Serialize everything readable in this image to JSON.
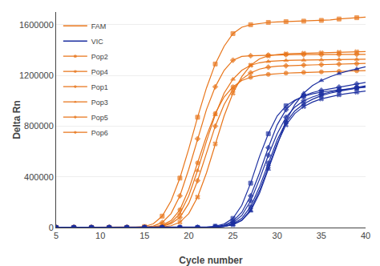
{
  "chart_data": {
    "type": "line",
    "xlabel": "Cycle number",
    "ylabel": "Delta Rn",
    "xlim": [
      5,
      40
    ],
    "ylim": [
      0,
      1700000
    ],
    "xticks": [
      5,
      10,
      15,
      20,
      25,
      30,
      35,
      40
    ],
    "yticks": [
      0,
      400000,
      800000,
      1200000,
      1600000
    ],
    "grid": "y",
    "legend": "upper left",
    "x": [
      5,
      6,
      7,
      8,
      9,
      10,
      11,
      12,
      13,
      14,
      15,
      16,
      17,
      18,
      19,
      20,
      21,
      22,
      23,
      24,
      25,
      26,
      27,
      28,
      29,
      30,
      31,
      32,
      33,
      34,
      35,
      36,
      37,
      38,
      39,
      40
    ],
    "series": [
      {
        "name": "FAM",
        "color": "#E8751A",
        "series": [
          {
            "name": "Pop2",
            "marker": "square",
            "values": [
              500,
              500,
              500,
              500,
              500,
              500,
              500,
              500,
              500,
              2000,
              8000,
              30000,
              90000,
              210000,
              390000,
              620000,
              870000,
              1100000,
              1290000,
              1430000,
              1530000,
              1580000,
              1600000,
              1610000,
              1618000,
              1622000,
              1624000,
              1626000,
              1628000,
              1630000,
              1634000,
              1638000,
              1645000,
              1650000,
              1655000,
              1660000
            ]
          },
          {
            "name": "Pop4",
            "marker": "x",
            "values": [
              500,
              500,
              500,
              500,
              500,
              500,
              500,
              500,
              500,
              500,
              500,
              1000,
              4000,
              14000,
              42000,
              110000,
              240000,
              430000,
              660000,
              880000,
              1060000,
              1190000,
              1280000,
              1330000,
              1355000,
              1365000,
              1370000,
              1372000,
              1374000,
              1376000,
              1378000,
              1380000,
              1382000,
              1384000,
              1386000,
              1388000
            ]
          },
          {
            "name": "Pop1",
            "marker": "diamond",
            "values": [
              500,
              500,
              500,
              500,
              500,
              500,
              500,
              500,
              500,
              1000,
              3000,
              12000,
              40000,
              110000,
              250000,
              460000,
              700000,
              930000,
              1110000,
              1240000,
              1320000,
              1350000,
              1355000,
              1358000,
              1360000,
              1362000,
              1363000,
              1364000,
              1364000,
              1364000,
              1364000,
              1365000,
              1365000,
              1366000,
              1366000,
              1366000
            ]
          },
          {
            "name": "Pop3",
            "marker": "triangle-up",
            "values": [
              500,
              500,
              500,
              500,
              500,
              500,
              500,
              500,
              500,
              500,
              1000,
              3000,
              12000,
              40000,
              110000,
              250000,
              450000,
              680000,
              890000,
              1060000,
              1170000,
              1240000,
              1280000,
              1300000,
              1310000,
              1315000,
              1318000,
              1320000,
              1321000,
              1322000,
              1323000,
              1324000,
              1325000,
              1326000,
              1327000,
              1328000
            ]
          },
          {
            "name": "Pop5",
            "marker": "diamond",
            "values": [
              500,
              500,
              500,
              500,
              500,
              500,
              500,
              500,
              500,
              500,
              1000,
              3000,
              10000,
              30000,
              80000,
              190000,
              370000,
              590000,
              800000,
              970000,
              1090000,
              1170000,
              1220000,
              1250000,
              1265000,
              1272000,
              1276000,
              1279000,
              1281000,
              1283000,
              1285000,
              1287000,
              1289000,
              1291000,
              1293000,
              1295000
            ]
          },
          {
            "name": "Pop6",
            "marker": "circle",
            "values": [
              500,
              500,
              500,
              500,
              500,
              500,
              500,
              500,
              500,
              500,
              1500,
              5000,
              18000,
              55000,
              140000,
              300000,
              510000,
              720000,
              900000,
              1030000,
              1110000,
              1160000,
              1185000,
              1200000,
              1208000,
              1214000,
              1218000,
              1221000,
              1224000,
              1226000,
              1228000,
              1230000,
              1232000,
              1234000,
              1236000,
              1238000
            ]
          }
        ]
      },
      {
        "name": "VIC",
        "color": "#1C2FA0",
        "series": [
          {
            "marker": "triangle-up",
            "values": [
              500,
              500,
              500,
              500,
              500,
              500,
              500,
              500,
              500,
              500,
              500,
              500,
              500,
              500,
              500,
              500,
              500,
              1000,
              3000,
              8000,
              22000,
              55000,
              130000,
              270000,
              460000,
              660000,
              840000,
              970000,
              1060000,
              1120000,
              1160000,
              1190000,
              1215000,
              1235000,
              1252000,
              1268000
            ]
          },
          {
            "marker": "diamond",
            "values": [
              500,
              500,
              500,
              500,
              500,
              500,
              500,
              500,
              500,
              500,
              500,
              500,
              500,
              500,
              500,
              500,
              500,
              2000,
              6000,
              18000,
              50000,
              120000,
              250000,
              430000,
              630000,
              810000,
              930000,
              1000000,
              1040000,
              1065000,
              1082000,
              1095000,
              1108000,
              1120000,
              1133000,
              1145000
            ]
          },
          {
            "marker": "diamond",
            "values": [
              500,
              500,
              500,
              500,
              500,
              500,
              500,
              500,
              500,
              500,
              500,
              500,
              500,
              500,
              500,
              500,
              500,
              1500,
              5000,
              14000,
              38000,
              95000,
              210000,
              380000,
              570000,
              740000,
              870000,
              950000,
              1000000,
              1030000,
              1052000,
              1068000,
              1082000,
              1094000,
              1106000,
              1118000
            ]
          },
          {
            "marker": "circle",
            "values": [
              500,
              500,
              500,
              500,
              500,
              500,
              500,
              500,
              500,
              500,
              500,
              500,
              500,
              500,
              500,
              500,
              500,
              1000,
              3500,
              10000,
              28000,
              72000,
              165000,
              320000,
              510000,
              690000,
              830000,
              920000,
              975000,
              1012000,
              1040000,
              1060000,
              1075000,
              1088000,
              1100000,
              1112000
            ]
          },
          {
            "marker": "x",
            "values": [
              500,
              500,
              500,
              500,
              500,
              500,
              500,
              500,
              500,
              500,
              500,
              500,
              500,
              500,
              500,
              500,
              500,
              1000,
              3000,
              8000,
              22000,
              58000,
              140000,
              290000,
              480000,
              660000,
              810000,
              900000,
              955000,
              990000,
              1015000,
              1033000,
              1047000,
              1058000,
              1068000,
              1077000
            ]
          },
          {
            "marker": "square",
            "values": [
              500,
              500,
              500,
              500,
              500,
              500,
              500,
              500,
              500,
              500,
              500,
              500,
              500,
              500,
              500,
              500,
              1000,
              3000,
              10000,
              28000,
              72000,
              175000,
              350000,
              560000,
              740000,
              880000,
              960000,
              1005000,
              1035000,
              1055000,
              1068000,
              1078000,
              1086000,
              1093000,
              1100000,
              1107000
            ]
          }
        ]
      }
    ]
  }
}
